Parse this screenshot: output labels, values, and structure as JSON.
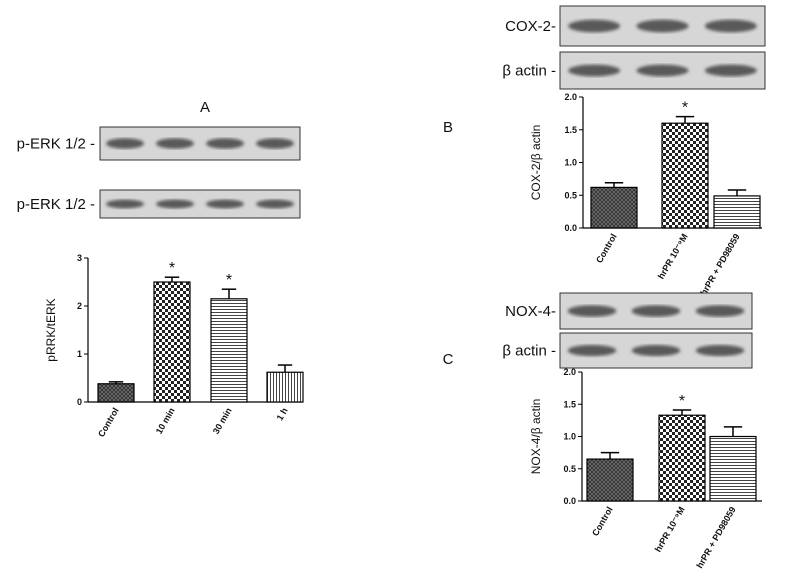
{
  "chart_data": [
    {
      "type": "bar",
      "panel": "A",
      "blot_labels": [
        "p-ERK 1/2 -",
        "p-ERK 1/2 -"
      ],
      "y_label": "pRRK/tERK",
      "categories": [
        "Control",
        "10 min",
        "30 min",
        "1 h"
      ],
      "values": [
        0.38,
        2.5,
        2.15,
        0.62
      ],
      "errors": [
        0.04,
        0.1,
        0.2,
        0.15
      ],
      "significance": [
        null,
        "*",
        "*",
        null
      ],
      "patterns": [
        "diagonal",
        "check",
        "hlines",
        "vlines"
      ],
      "ylim": [
        0,
        3
      ],
      "yticks": [
        0,
        1,
        2,
        3
      ]
    },
    {
      "type": "bar",
      "panel": "B",
      "blot_labels": [
        "COX-2-",
        "β actin -"
      ],
      "y_label": "COX-2/β actin",
      "categories": [
        "Control",
        "hrPR 10⁻⁹M",
        "hrPR + PD98059"
      ],
      "values": [
        0.62,
        1.6,
        0.49
      ],
      "errors": [
        0.07,
        0.1,
        0.09
      ],
      "significance": [
        null,
        "*",
        null
      ],
      "patterns": [
        "diagonal",
        "check",
        "hlines"
      ],
      "ylim": [
        0,
        2
      ],
      "yticks": [
        {
          "value": 0,
          "label": "0.0"
        },
        {
          "value": 0.5,
          "label": "0.5"
        },
        {
          "value": 1,
          "label": "1.0"
        },
        {
          "value": 1.5,
          "label": "1.5"
        },
        {
          "value": 2,
          "label": "2.0"
        }
      ]
    },
    {
      "type": "bar",
      "panel": "C",
      "blot_labels": [
        "NOX-4-",
        "β actin -"
      ],
      "y_label": "NOX-4/β actin",
      "categories": [
        "Control",
        "hrPR 10⁻⁹M",
        "hrPR + PD98059"
      ],
      "values": [
        0.65,
        1.33,
        1.0
      ],
      "errors": [
        0.1,
        0.08,
        0.15
      ],
      "significance": [
        null,
        "*",
        null
      ],
      "patterns": [
        "diagonal",
        "check",
        "hlines"
      ],
      "ylim": [
        0,
        2
      ],
      "yticks": [
        {
          "value": 0,
          "label": "0.0"
        },
        {
          "value": 0.5,
          "label": "0.5"
        },
        {
          "value": 1,
          "label": "1.0"
        },
        {
          "value": 1.5,
          "label": "1.5"
        },
        {
          "value": 2,
          "label": "2.0"
        }
      ]
    }
  ]
}
